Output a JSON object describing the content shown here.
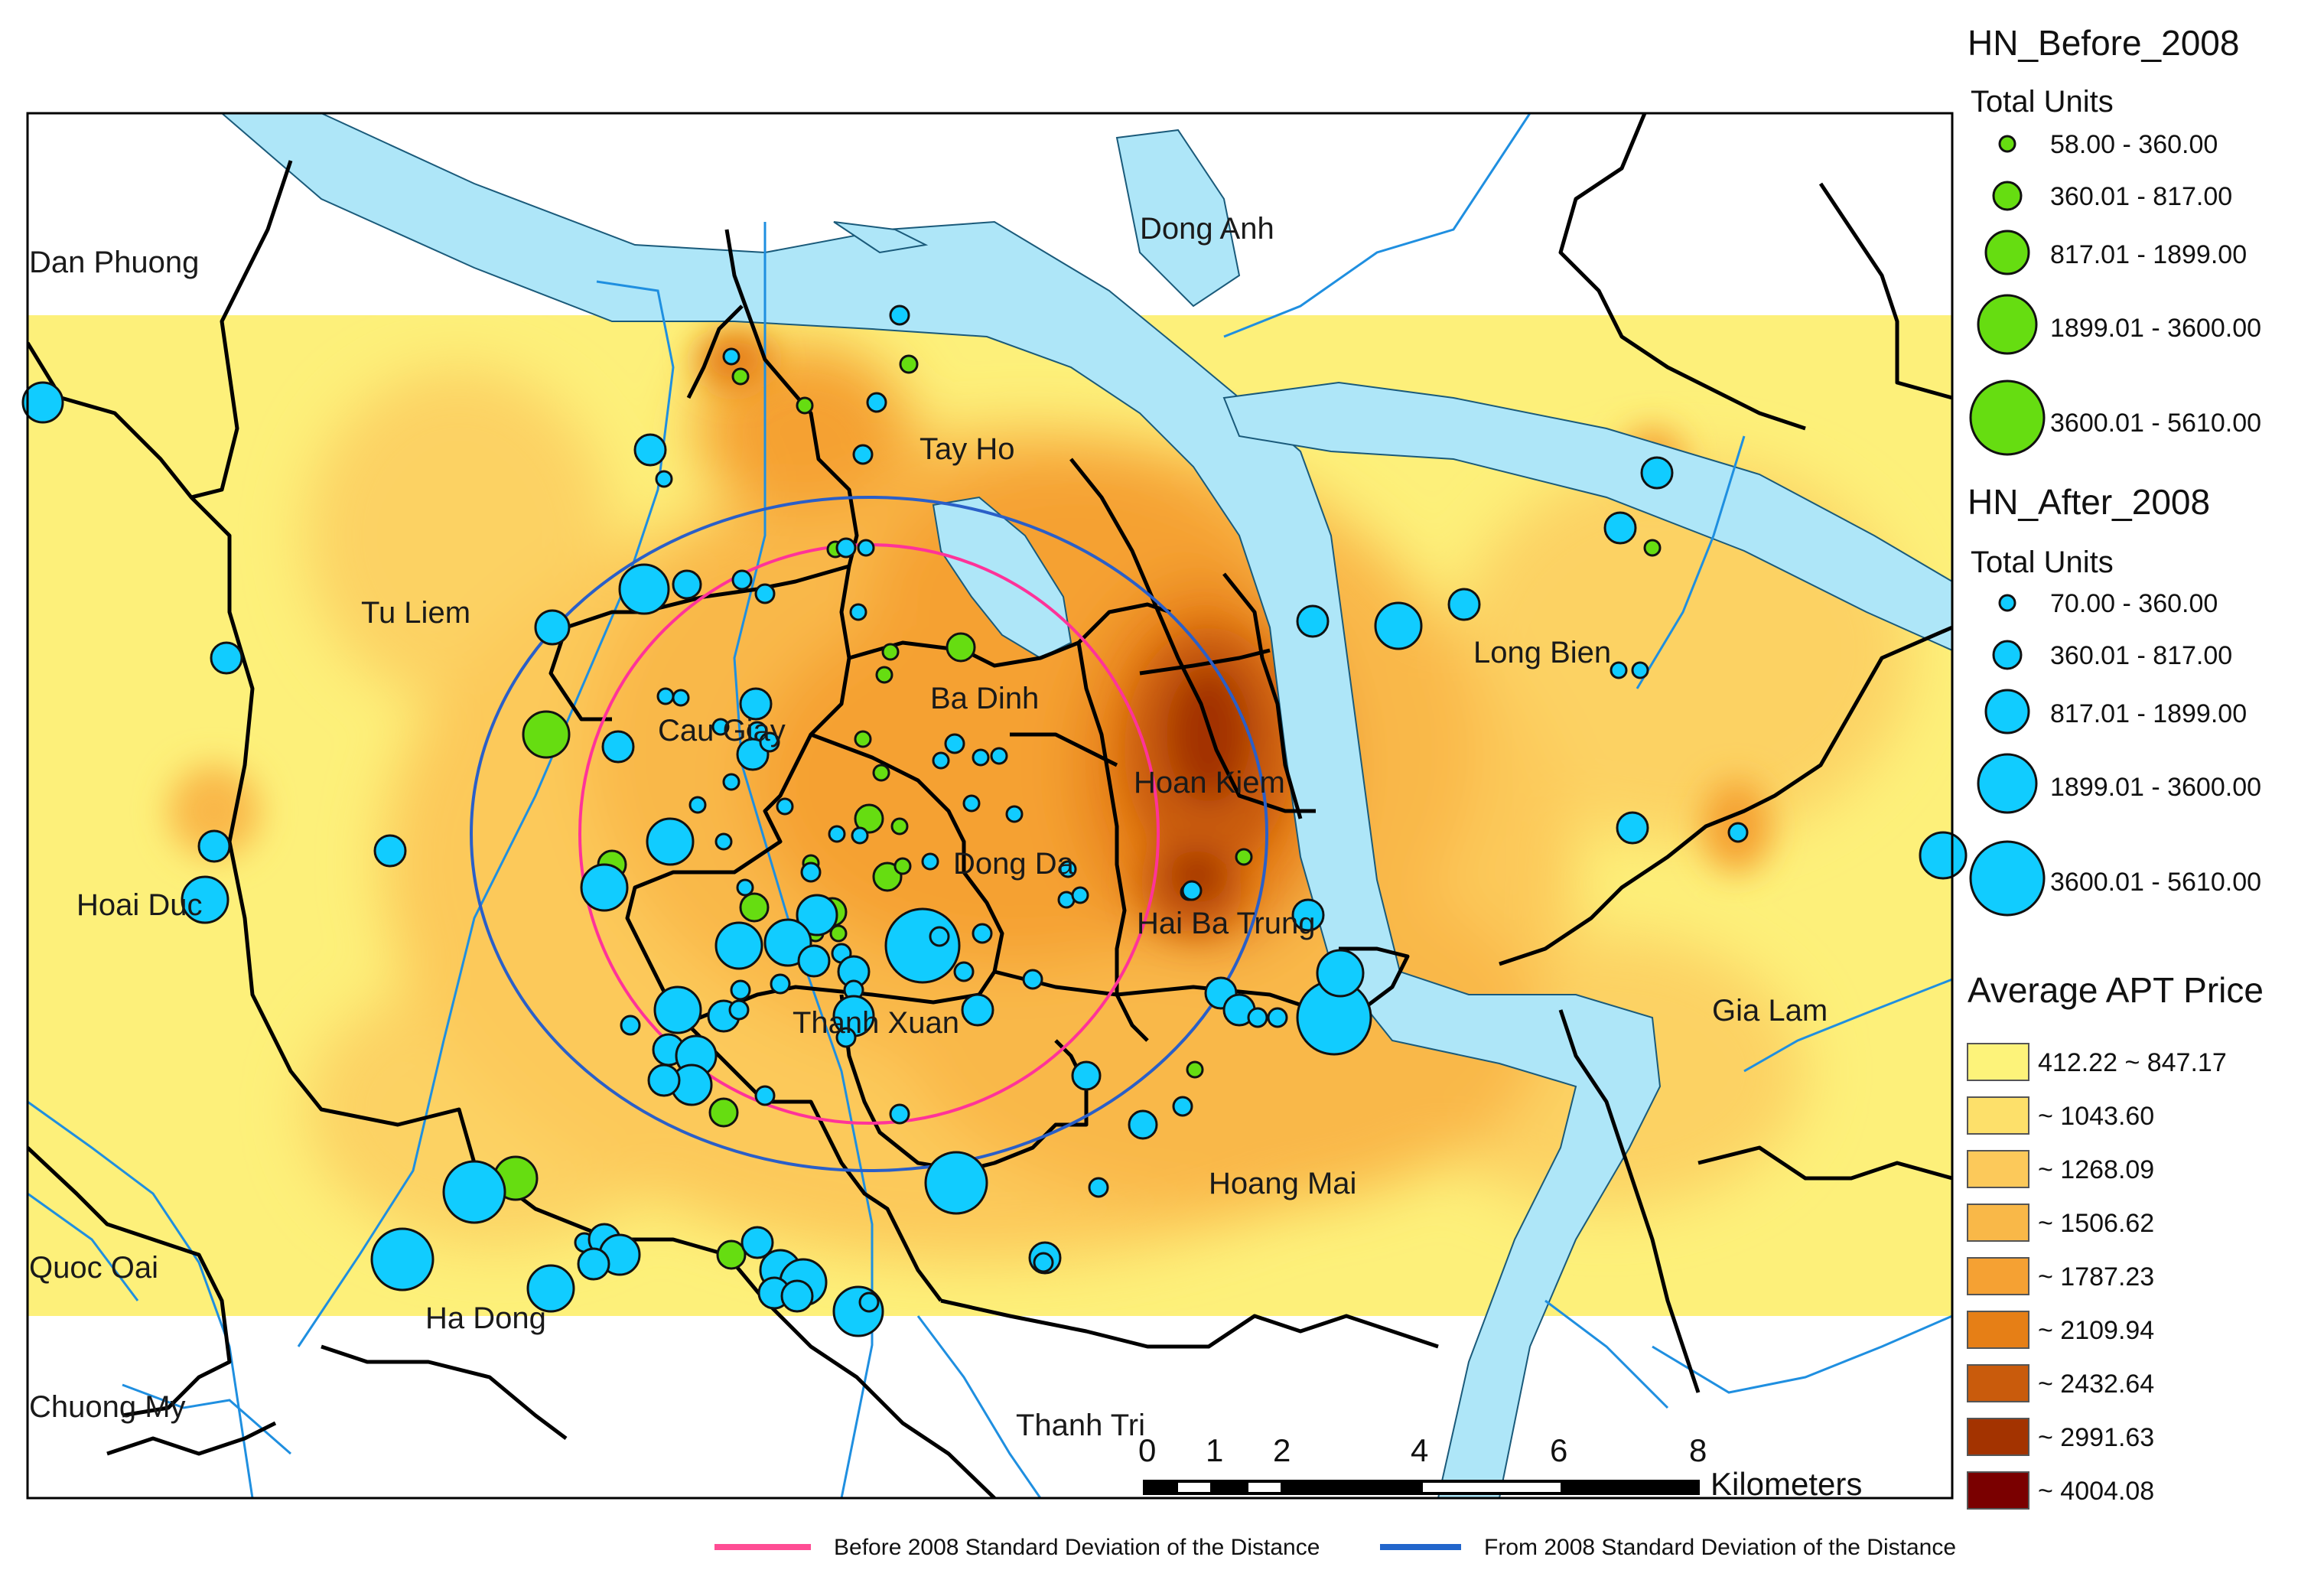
{
  "districts": [
    {
      "id": "dan-phuong",
      "name": "Dan Phuong"
    },
    {
      "id": "dong-anh",
      "name": "Dong Anh"
    },
    {
      "id": "tay-ho",
      "name": "Tay Ho"
    },
    {
      "id": "tu-liem",
      "name": "Tu Liem"
    },
    {
      "id": "long-bien",
      "name": "Long Bien"
    },
    {
      "id": "ba-dinh",
      "name": "Ba Dinh"
    },
    {
      "id": "cau-giay",
      "name": "Cau Giay"
    },
    {
      "id": "hoan-kiem",
      "name": "Hoan Kiem"
    },
    {
      "id": "dong-da",
      "name": "Dong Da"
    },
    {
      "id": "hoai-duc",
      "name": "Hoai Duc"
    },
    {
      "id": "hai-ba-trung",
      "name": "Hai Ba Trung"
    },
    {
      "id": "gia-lam",
      "name": "Gia Lam"
    },
    {
      "id": "thanh-xuan",
      "name": "Thanh Xuan"
    },
    {
      "id": "hoang-mai",
      "name": "Hoang Mai"
    },
    {
      "id": "quoc-oai",
      "name": "Quoc Oai"
    },
    {
      "id": "ha-dong",
      "name": "Ha Dong"
    },
    {
      "id": "chuong-my",
      "name": "Chuong My"
    },
    {
      "id": "thanh-tri",
      "name": "Thanh Tri"
    }
  ],
  "legend_before": {
    "title": "HN_Before_2008",
    "subtitle": "Total Units",
    "color": "#66dd11",
    "classes": [
      "58.00 - 360.00",
      "360.01 - 817.00",
      "817.01 - 1899.00",
      "1899.01 - 3600.00",
      "3600.01 - 5610.00"
    ]
  },
  "legend_after": {
    "title": "HN_After_2008",
    "subtitle": "Total Units",
    "color": "#11ccff",
    "classes": [
      "70.00 - 360.00",
      "360.01 - 817.00",
      "817.01 - 1899.00",
      "1899.01 - 3600.00",
      "3600.01 - 5610.00"
    ]
  },
  "legend_price": {
    "title": "Average APT Price",
    "classes": [
      {
        "label": "412.22 ~ 847.17",
        "color": "#fdf37a"
      },
      {
        "label": "~ 1043.60",
        "color": "#fde06a"
      },
      {
        "label": "~ 1268.09",
        "color": "#fcc95a"
      },
      {
        "label": "~ 1506.62",
        "color": "#f9b848"
      },
      {
        "label": "~ 1787.23",
        "color": "#f5a133"
      },
      {
        "label": "~ 2109.94",
        "color": "#e67f16"
      },
      {
        "label": "~ 2432.64",
        "color": "#c95b0c"
      },
      {
        "label": "~ 2991.63",
        "color": "#a33300"
      },
      {
        "label": "~ 4004.08",
        "color": "#7a0000"
      }
    ]
  },
  "scale_bar": {
    "ticks": [
      "0",
      "1",
      "2",
      "4",
      "6",
      "8"
    ],
    "unit": "Kilometers"
  },
  "footer": {
    "before_label": "Before 2008 Standard Deviation of the Distance",
    "before_color": "#ff4d94",
    "after_label": "From 2008 Standard Deviation of the Distance",
    "after_color": "#2266cc"
  },
  "colors": {
    "river": "#aee6f8",
    "boundary": "#000000",
    "road": "#1f8fe0"
  }
}
